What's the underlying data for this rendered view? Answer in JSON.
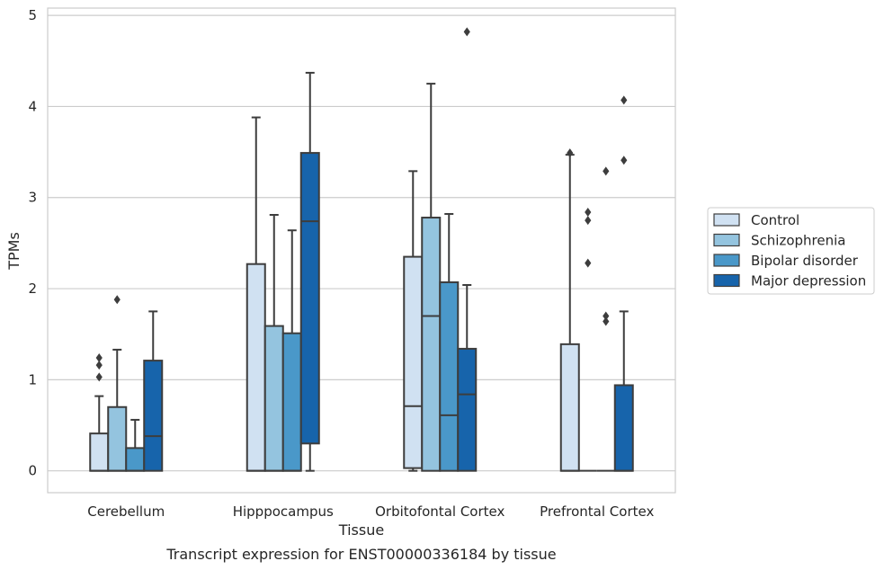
{
  "chart_data": {
    "type": "boxplot",
    "title": "",
    "caption": "Transcript expression for ENST00000336184 by tissue",
    "xlabel": "Tissue",
    "ylabel": "TPMs",
    "ylim": [
      -0.24,
      5.08
    ],
    "yticks": [
      0,
      1,
      2,
      3,
      4,
      5
    ],
    "ytick_labels": [
      "0",
      "1",
      "2",
      "3",
      "4",
      "5"
    ],
    "grid": "horizontal",
    "legend_position": "right",
    "categories": [
      "Cerebellum",
      "Hipppocampus",
      "Orbitofontal Cortex",
      "Prefrontal Cortex"
    ],
    "series": [
      {
        "name": "Control",
        "color": "#d0e1f2",
        "boxes": [
          {
            "whislo": 0,
            "q1": 0,
            "med": 0,
            "q3": 0.41,
            "whishi": 0.82,
            "fliers": [
              1.03,
              1.16,
              1.24
            ]
          },
          {
            "whislo": 0,
            "q1": 0,
            "med": 0,
            "q3": 2.27,
            "whishi": 3.88,
            "fliers": []
          },
          {
            "whislo": 0,
            "q1": 0.03,
            "med": 0.71,
            "q3": 2.35,
            "whishi": 3.29,
            "fliers": []
          },
          {
            "whislo": 0,
            "q1": 0,
            "med": 0,
            "q3": 1.39,
            "whishi": 3.47,
            "fliers": [
              3.49
            ]
          }
        ]
      },
      {
        "name": "Schizophrenia",
        "color": "#94c4df",
        "boxes": [
          {
            "whislo": 0,
            "q1": 0,
            "med": 0,
            "q3": 0.7,
            "whishi": 1.33,
            "fliers": [
              1.88
            ]
          },
          {
            "whislo": 0,
            "q1": 0,
            "med": 0,
            "q3": 1.59,
            "whishi": 2.81,
            "fliers": []
          },
          {
            "whislo": 0,
            "q1": 0,
            "med": 1.7,
            "q3": 2.78,
            "whishi": 4.25,
            "fliers": []
          },
          {
            "whislo": 0,
            "q1": 0,
            "med": 0,
            "q3": 0,
            "whishi": 0,
            "fliers": [
              2.28,
              2.75,
              2.84
            ]
          }
        ]
      },
      {
        "name": "Bipolar disorder",
        "color": "#4a98c9",
        "boxes": [
          {
            "whislo": 0,
            "q1": 0,
            "med": 0,
            "q3": 0.25,
            "whishi": 0.56,
            "fliers": []
          },
          {
            "whislo": 0,
            "q1": 0,
            "med": 0,
            "q3": 1.51,
            "whishi": 2.64,
            "fliers": []
          },
          {
            "whislo": 0,
            "q1": 0,
            "med": 0.61,
            "q3": 2.07,
            "whishi": 2.82,
            "fliers": []
          },
          {
            "whislo": 0,
            "q1": 0,
            "med": 0,
            "q3": 0,
            "whishi": 0,
            "fliers": [
              1.64,
              1.7,
              3.29
            ]
          }
        ]
      },
      {
        "name": "Major depression",
        "color": "#1764ab",
        "boxes": [
          {
            "whislo": 0,
            "q1": 0,
            "med": 0.38,
            "q3": 1.21,
            "whishi": 1.75,
            "fliers": []
          },
          {
            "whislo": 0,
            "q1": 0.3,
            "med": 2.74,
            "q3": 3.49,
            "whishi": 4.37,
            "fliers": []
          },
          {
            "whislo": 0,
            "q1": 0,
            "med": 0.84,
            "q3": 1.34,
            "whishi": 2.04,
            "fliers": [
              4.82
            ]
          },
          {
            "whislo": 0,
            "q1": 0,
            "med": 0,
            "q3": 0.94,
            "whishi": 1.75,
            "fliers": [
              3.41,
              4.07
            ]
          }
        ]
      }
    ]
  }
}
